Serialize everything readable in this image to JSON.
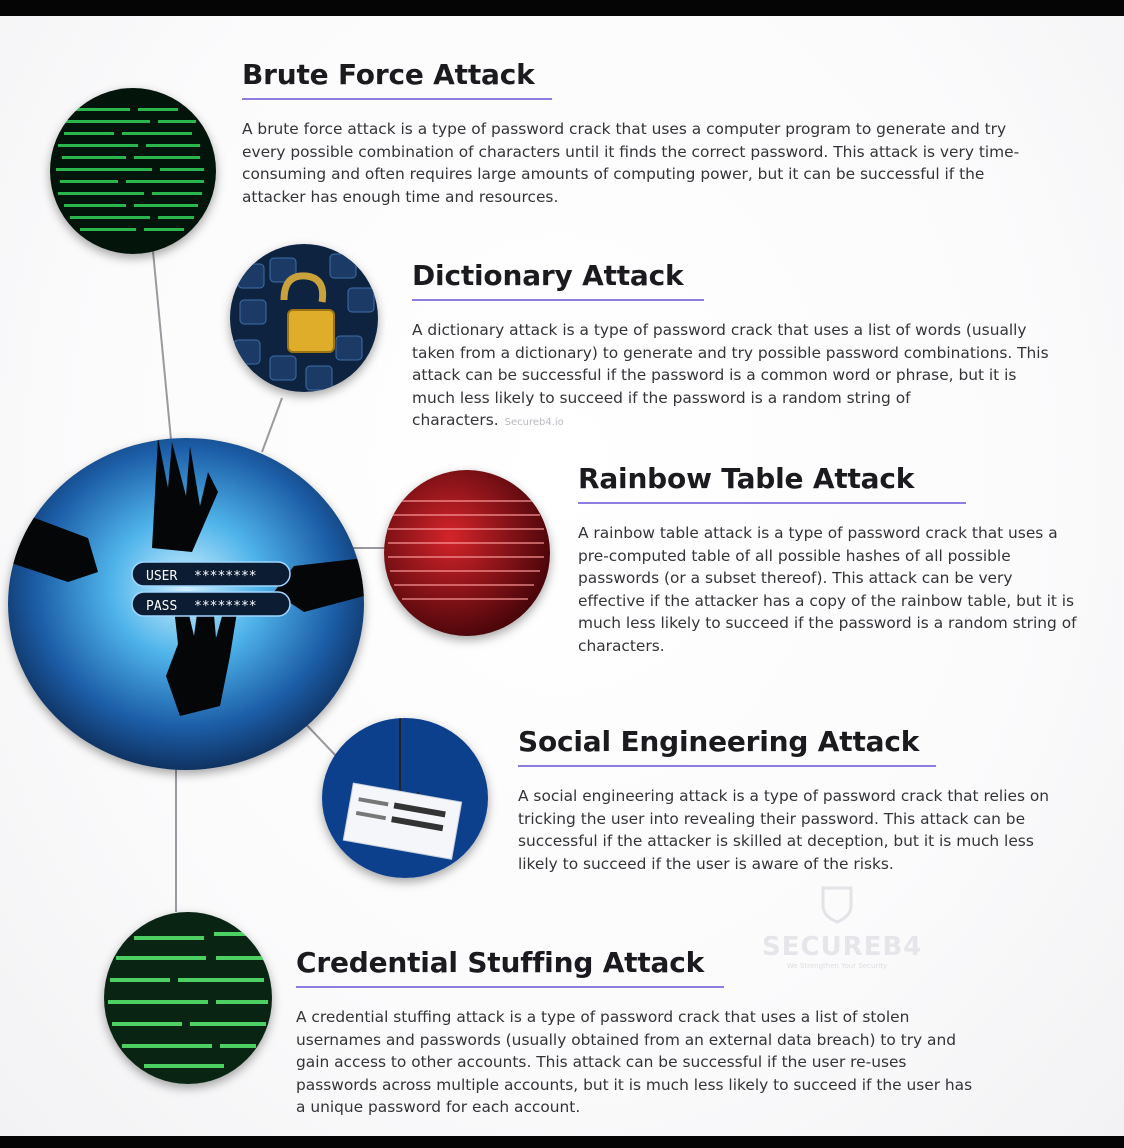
{
  "sections": [
    {
      "title": "Brute Force Attack",
      "body": "A brute force attack is a type of password crack that uses a computer program to generate and try every possible combination of characters until it finds the correct password. This attack is very time-consuming and often requires large amounts of computing power, but it can be successful if the attacker has enough time and resources."
    },
    {
      "title": "Dictionary Attack",
      "body": "A dictionary attack is a type of password crack that uses a list of words (usually taken from a dictionary) to generate and try possible password combinations. This attack can be successful if the password is a common word or phrase, but it is much less likely to succeed if the password is a random string of characters.",
      "watermark": "Secureb4.io"
    },
    {
      "title": "Rainbow Table Attack",
      "body": "A rainbow table attack is a type of password crack that uses a pre-computed table of all possible hashes of all possible passwords (or a subset thereof). This attack can be very effective if the attacker has a copy of the rainbow table, but it is much less likely to succeed if the password is a random string of characters."
    },
    {
      "title": "Social Engineering Attack",
      "body": "A social engineering attack is a type of password crack that relies on tricking the user into revealing their password. This attack can be successful if the attacker is skilled at deception, but it is much less likely to succeed if the user is aware of the risks."
    },
    {
      "title": "Credential Stuffing Attack",
      "body": "A credential stuffing attack is a type of password crack that uses a list of stolen usernames and passwords (usually obtained from an external data breach) to try and gain access to other accounts. This attack can be successful if the user re-uses passwords across multiple accounts, but it is much less likely to succeed if the user has a unique password for each account."
    }
  ],
  "hero": {
    "user_label": "USER",
    "pass_label": "PASS",
    "masked": "********"
  },
  "logo": {
    "name": "SECUREB4",
    "tagline": "We Strengthen Your Security"
  },
  "colors": {
    "accent_underline": "#8e7de0",
    "text": "#333438",
    "heading": "#1b1b1f"
  },
  "icons": [
    "matrix-code-icon",
    "keyboard-padlock-icon",
    "hands-login-icon",
    "binary-red-icon",
    "phishing-hook-icon",
    "green-code-icon",
    "shield-logo-icon"
  ]
}
